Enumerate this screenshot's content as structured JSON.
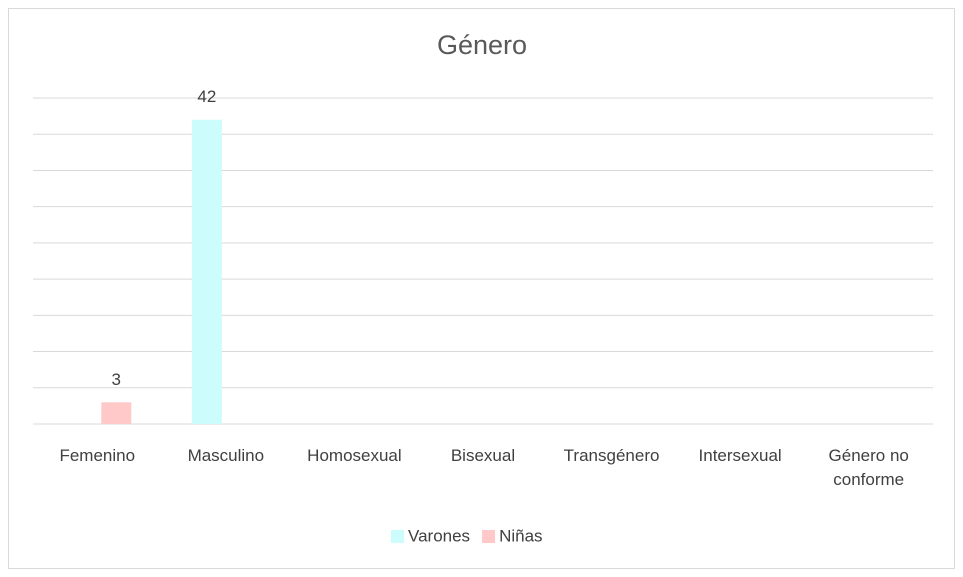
{
  "chart_data": {
    "type": "bar",
    "title": "Género",
    "categories": [
      "Femenino",
      "Masculino",
      "Homosexual",
      "Bisexual",
      "Transgénero",
      "Intersexual",
      "Género no conforme"
    ],
    "series": [
      {
        "name": "Varones",
        "color": "#ccfcfc",
        "values": [
          null,
          42,
          null,
          null,
          null,
          null,
          null
        ]
      },
      {
        "name": "Niñas",
        "color": "#ffc9c9",
        "values": [
          3,
          null,
          null,
          null,
          null,
          null,
          null
        ]
      }
    ],
    "ylim": [
      0,
      45
    ],
    "yticks": [
      0,
      5,
      10,
      15,
      20,
      25,
      30,
      35,
      40,
      45
    ],
    "grid": true,
    "legend": "bottom"
  }
}
